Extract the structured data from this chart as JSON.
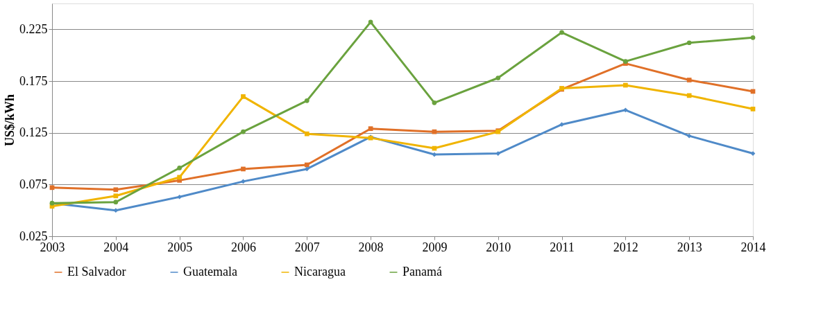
{
  "chart_data": {
    "type": "line",
    "ylabel": "US$/kWh",
    "x": [
      2003,
      2004,
      2005,
      2006,
      2007,
      2008,
      2009,
      2010,
      2011,
      2012,
      2013,
      2014
    ],
    "series": [
      {
        "name": "El Salvador",
        "color": "#e07028",
        "marker": "square",
        "values": [
          0.072,
          0.07,
          0.079,
          0.09,
          0.094,
          0.129,
          0.126,
          0.127,
          0.167,
          0.192,
          0.176,
          0.165
        ]
      },
      {
        "name": "Guatemala",
        "color": "#4f8ac8",
        "marker": "diamond",
        "values": [
          0.057,
          0.05,
          0.063,
          0.078,
          0.09,
          0.121,
          0.104,
          0.105,
          0.133,
          0.147,
          0.122,
          0.105
        ]
      },
      {
        "name": "Nicaragua",
        "color": "#f0b400",
        "marker": "square",
        "values": [
          0.054,
          0.064,
          0.082,
          0.16,
          0.124,
          0.12,
          0.11,
          0.126,
          0.168,
          0.171,
          0.161,
          0.148
        ]
      },
      {
        "name": "Panamá",
        "color": "#6aa23e",
        "marker": "circle",
        "values": [
          0.057,
          0.058,
          0.091,
          0.126,
          0.156,
          0.232,
          0.154,
          0.178,
          0.222,
          0.194,
          0.212,
          0.217
        ]
      }
    ],
    "xlim": [
      2003,
      2014
    ],
    "xticks": [
      2003,
      2004,
      2005,
      2006,
      2007,
      2008,
      2009,
      2010,
      2011,
      2012,
      2013,
      2014
    ],
    "ylim": [
      0.025,
      0.25
    ],
    "yticks": [
      0.025,
      0.075,
      0.125,
      0.175,
      0.225
    ],
    "grid": "y",
    "legend": "bottom",
    "line_style": "solid"
  }
}
